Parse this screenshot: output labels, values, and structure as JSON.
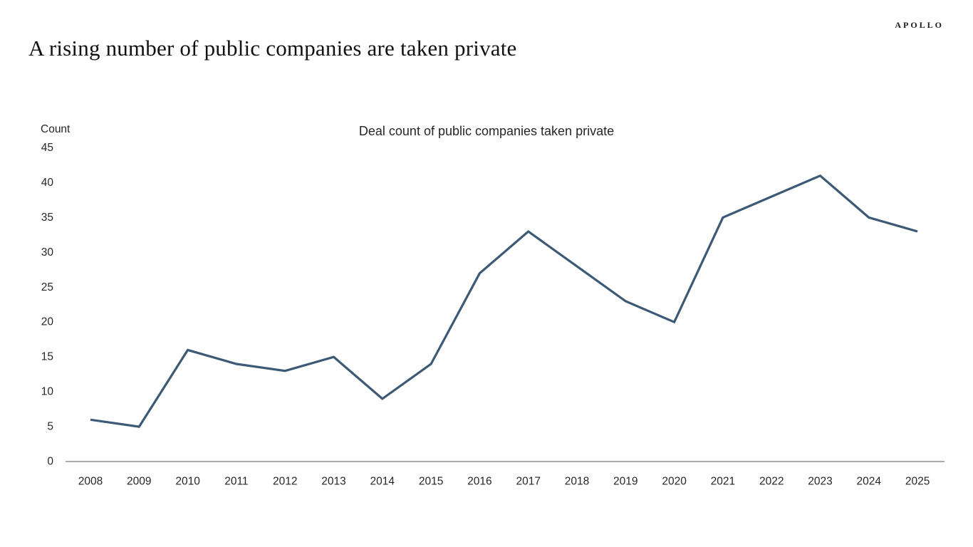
{
  "header": {
    "logo": "APOLLO",
    "title": "A rising number of public companies are taken private"
  },
  "chart": {
    "unit_label": "Count"
  },
  "chart_data": {
    "type": "line",
    "title": "Deal count of public companies taken private",
    "categories": [
      "2008",
      "2009",
      "2010",
      "2011",
      "2012",
      "2013",
      "2014",
      "2015",
      "2016",
      "2017",
      "2018",
      "2019",
      "2020",
      "2021",
      "2022",
      "2023",
      "2024",
      "2025"
    ],
    "values": [
      6,
      5,
      16,
      14,
      13,
      15,
      9,
      14,
      27,
      33,
      28,
      23,
      20,
      35,
      38,
      41,
      35,
      33
    ],
    "xlabel": "",
    "ylabel": "Count",
    "ylim": [
      0,
      45
    ],
    "yticks": [
      0,
      5,
      10,
      15,
      20,
      25,
      30,
      35,
      40,
      45
    ],
    "grid": false,
    "legend": "none",
    "line_color": "#3c5a76",
    "axis_color": "#7a7a7a",
    "label_color": "#262626"
  }
}
